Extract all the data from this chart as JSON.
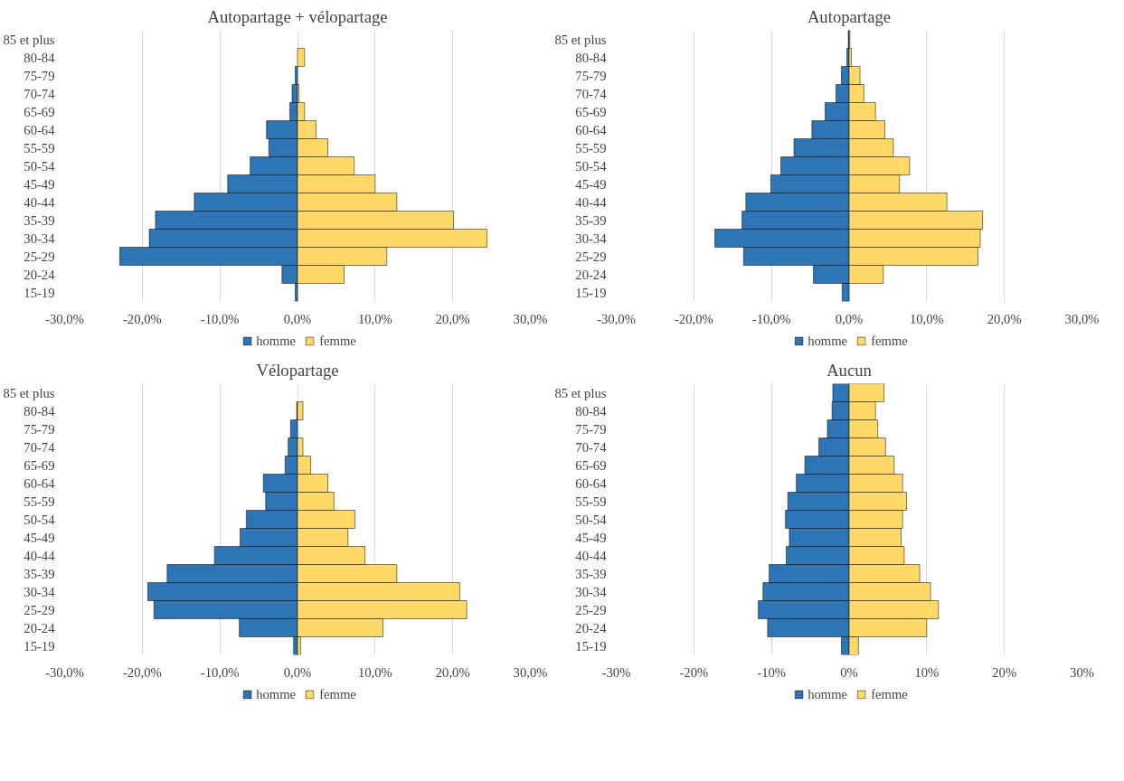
{
  "chart_data": [
    {
      "type": "bar",
      "orientation": "horizontal",
      "stacked": true,
      "title": "Autopartage + vélopartage",
      "categories": [
        "85 et plus",
        "80-84",
        "75-79",
        "70-74",
        "65-69",
        "60-64",
        "55-59",
        "50-54",
        "45-49",
        "40-44",
        "35-39",
        "30-34",
        "25-29",
        "20-24",
        "15-19"
      ],
      "series": [
        {
          "name": "homme",
          "color": "#2e75b6",
          "values": [
            0,
            0,
            -0.3,
            -0.7,
            -1.0,
            -4.0,
            -3.7,
            -6.1,
            -9.0,
            -13.3,
            -18.3,
            -19.1,
            -22.9,
            -2.0,
            -0.3
          ]
        },
        {
          "name": "femme",
          "color": "#ffd966",
          "values": [
            0,
            0.9,
            0,
            0.2,
            0.9,
            2.4,
            3.9,
            7.3,
            10.0,
            12.8,
            20.1,
            24.4,
            11.5,
            6.0,
            0
          ]
        }
      ],
      "xlim": [
        -30,
        30
      ],
      "xticks": [
        {
          "value": -30,
          "label": "-30,0%"
        },
        {
          "value": -20,
          "label": "-20,0%"
        },
        {
          "value": -10,
          "label": "-10,0%"
        },
        {
          "value": 0,
          "label": "0,0%"
        },
        {
          "value": 10,
          "label": "10,0%"
        },
        {
          "value": 20,
          "label": "20,0%"
        },
        {
          "value": 30,
          "label": "30,0%"
        }
      ],
      "grid": "x",
      "legend": "bottom"
    },
    {
      "type": "bar",
      "orientation": "horizontal",
      "stacked": true,
      "title": "Autopartage",
      "categories": [
        "85 et plus",
        "80-84",
        "75-79",
        "70-74",
        "65-69",
        "60-64",
        "55-59",
        "50-54",
        "45-49",
        "40-44",
        "35-39",
        "30-34",
        "25-29",
        "20-24",
        "15-19"
      ],
      "series": [
        {
          "name": "homme",
          "color": "#2e75b6",
          "values": [
            -0.1,
            -0.3,
            -1.0,
            -1.7,
            -3.1,
            -4.8,
            -7.1,
            -8.8,
            -10.1,
            -13.3,
            -13.8,
            -17.3,
            -13.6,
            -4.6,
            -0.9
          ]
        },
        {
          "name": "femme",
          "color": "#ffd966",
          "values": [
            0.1,
            0.3,
            1.4,
            1.9,
            3.4,
            4.6,
            5.7,
            7.8,
            6.5,
            12.6,
            17.2,
            16.9,
            16.6,
            4.4,
            0
          ]
        }
      ],
      "xlim": [
        -30,
        30
      ],
      "xticks": [
        {
          "value": -30,
          "label": "-30,0%"
        },
        {
          "value": -20,
          "label": "-20,0%"
        },
        {
          "value": -10,
          "label": "-10,0%"
        },
        {
          "value": 0,
          "label": "0,0%"
        },
        {
          "value": 10,
          "label": "10,0%"
        },
        {
          "value": 20,
          "label": "20,0%"
        },
        {
          "value": 30,
          "label": "30,0%"
        }
      ],
      "grid": "x",
      "legend": "bottom"
    },
    {
      "type": "bar",
      "orientation": "horizontal",
      "stacked": true,
      "title": "Vélopartage",
      "categories": [
        "85 et plus",
        "80-84",
        "75-79",
        "70-74",
        "65-69",
        "60-64",
        "55-59",
        "50-54",
        "45-49",
        "40-44",
        "35-39",
        "30-34",
        "25-29",
        "20-24",
        "15-19"
      ],
      "series": [
        {
          "name": "homme",
          "color": "#2e75b6",
          "values": [
            0,
            -0.1,
            -0.9,
            -1.2,
            -1.6,
            -4.4,
            -4.1,
            -6.6,
            -7.4,
            -10.7,
            -16.8,
            -19.3,
            -18.5,
            -7.5,
            -0.5
          ]
        },
        {
          "name": "femme",
          "color": "#ffd966",
          "values": [
            0,
            0.7,
            0,
            0.7,
            1.7,
            3.9,
            4.7,
            7.4,
            6.5,
            8.7,
            12.8,
            20.9,
            21.8,
            11.0,
            0.4
          ]
        }
      ],
      "xlim": [
        -30,
        30
      ],
      "xticks": [
        {
          "value": -30,
          "label": "-30,0%"
        },
        {
          "value": -20,
          "label": "-20,0%"
        },
        {
          "value": -10,
          "label": "-10,0%"
        },
        {
          "value": 0,
          "label": "0,0%"
        },
        {
          "value": 10,
          "label": "10,0%"
        },
        {
          "value": 20,
          "label": "20,0%"
        },
        {
          "value": 30,
          "label": "30,0%"
        }
      ],
      "grid": "x",
      "legend": "bottom"
    },
    {
      "type": "bar",
      "orientation": "horizontal",
      "title": "Aucun",
      "categories": [
        "85 et plus",
        "80-84",
        "75-79",
        "70-74",
        "65-69",
        "60-64",
        "55-59",
        "50-54",
        "45-49",
        "40-44",
        "35-39",
        "30-34",
        "25-29",
        "20-24",
        "15-19"
      ],
      "series": [
        {
          "name": "homme",
          "color": "#2e75b6",
          "values": [
            -2.1,
            -2.2,
            -2.8,
            -3.9,
            -5.7,
            -6.8,
            -7.9,
            -8.2,
            -7.7,
            -8.1,
            -10.3,
            -11.1,
            -11.7,
            -10.5,
            -1.0
          ]
        },
        {
          "name": "femme",
          "color": "#ffd966",
          "values": [
            4.5,
            3.4,
            3.7,
            4.7,
            5.8,
            6.9,
            7.4,
            6.9,
            6.7,
            7.1,
            9.1,
            10.5,
            11.5,
            10.0,
            1.2
          ]
        }
      ],
      "stacked": true,
      "xlim": [
        -30,
        30
      ],
      "xticks": [
        {
          "value": -30,
          "label": "-30%"
        },
        {
          "value": -20,
          "label": "-20%"
        },
        {
          "value": -10,
          "label": "-10%"
        },
        {
          "value": 0,
          "label": "0%"
        },
        {
          "value": 10,
          "label": "10%"
        },
        {
          "value": 20,
          "label": "20%"
        },
        {
          "value": 30,
          "label": "30%"
        }
      ],
      "grid": "x",
      "legend": "bottom"
    }
  ]
}
